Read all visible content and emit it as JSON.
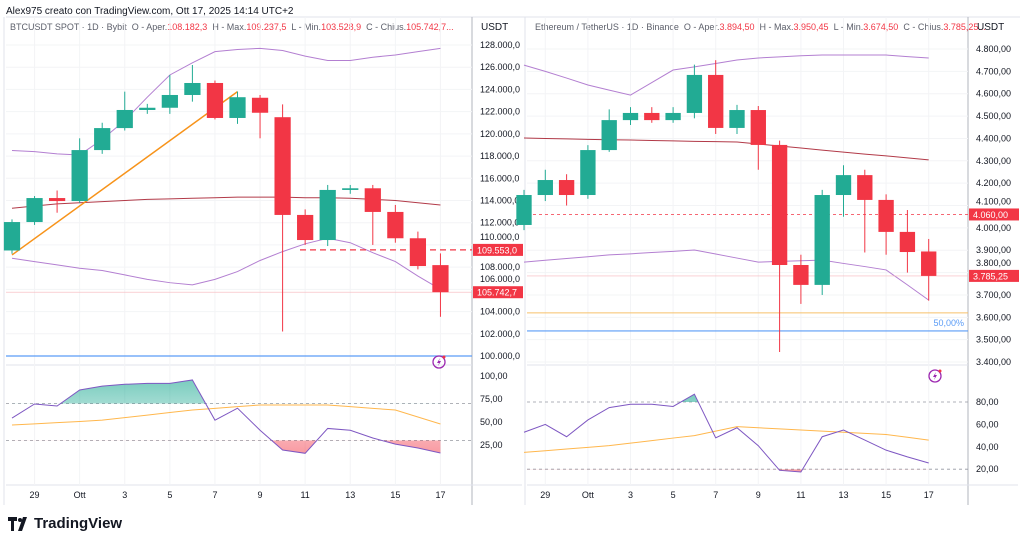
{
  "credit": "Alex975 creato con TradingView.com, Ott 17, 2025 14:14 UTC+2",
  "brand": "TradingView",
  "colors": {
    "up": "#22ab94",
    "down": "#f23645",
    "band": "#b37fd1",
    "basis": "#b23a48",
    "trend": "#f7931a",
    "level": "#2962ff",
    "rsi": "#7e57c2",
    "rsi_signal": "#ffb74d"
  },
  "dates": [
    "28",
    "29",
    "30",
    "Ott",
    "2",
    "3",
    "4",
    "5",
    "6",
    "7",
    "8",
    "9",
    "10",
    "11",
    "12",
    "13",
    "14",
    "15",
    "16",
    "17"
  ],
  "date_labels": [
    "29",
    "Ott",
    "3",
    "5",
    "7",
    "9",
    "11",
    "13",
    "15",
    "17"
  ],
  "panels": [
    {
      "symbol": "BTCUSDT SPOT · 1D · Bybit",
      "o_label": "O - Aper.",
      "o": "108.182,3",
      "h_label": "H - Max.",
      "h": "109.237,5",
      "l_label": "L - Min.",
      "l": "103.528,9",
      "c_label": "C - Chius.",
      "c": "105.742,7...",
      "currency": "USDT",
      "price_ticks": [
        "128.000,0",
        "126.000,0",
        "124.000,0",
        "122.000,0",
        "120.000,0",
        "118.000,0",
        "116.000,0",
        "114.000,0",
        "112.000,0",
        "110.000,0",
        "108.000,0",
        "106.000,0",
        "104.000,0",
        "102.000,0",
        "100.000,0"
      ],
      "rsi_ticks": [
        "100,00",
        "75,00",
        "50,00",
        "25,00"
      ],
      "dashed_level": {
        "value": 109553,
        "label": "109.553,0"
      },
      "last_price": {
        "value": 105742.7,
        "label": "105.742,7"
      },
      "horizontal_line": {
        "value": 100000
      },
      "trendline": {
        "from": [
          "28",
          109100
        ],
        "to": [
          "8",
          123800
        ]
      },
      "candles": [
        [
          109500,
          112300,
          109200,
          112060
        ],
        [
          112060,
          114400,
          111800,
          114220
        ],
        [
          114220,
          114900,
          112900,
          113950
        ],
        [
          113950,
          119600,
          113800,
          118540
        ],
        [
          118540,
          121000,
          118200,
          120520
        ],
        [
          120520,
          123800,
          120300,
          122150
        ],
        [
          122150,
          122700,
          121800,
          122350
        ],
        [
          122350,
          125300,
          121800,
          123500
        ],
        [
          123500,
          126200,
          122900,
          124580
        ],
        [
          124580,
          124800,
          121300,
          121430
        ],
        [
          121430,
          123800,
          120900,
          123300
        ],
        [
          123250,
          123500,
          119600,
          121900
        ],
        [
          121500,
          122650,
          102200,
          112700
        ],
        [
          112700,
          113200,
          110000,
          110440
        ],
        [
          110440,
          115400,
          109900,
          114950
        ],
        [
          114950,
          115400,
          114600,
          115100
        ],
        [
          115100,
          115400,
          110000,
          112970
        ],
        [
          112970,
          113600,
          110200,
          110600
        ],
        [
          110600,
          111200,
          107800,
          108100
        ],
        [
          108182.3,
          109237.5,
          103528.9,
          105742.7
        ]
      ],
      "bb_upper": [
        118500,
        118400,
        118200,
        118100,
        119500,
        121200,
        123300,
        125300,
        126400,
        127400,
        127600,
        127700,
        127500,
        127000,
        126600,
        126600,
        126900,
        127100,
        127400,
        127700
      ],
      "bb_basis": [
        113300,
        113500,
        113700,
        113800,
        113900,
        114000,
        114100,
        114150,
        114200,
        114250,
        114300,
        114300,
        114300,
        114250,
        114250,
        114200,
        114100,
        114000,
        113800,
        113600
      ],
      "bb_lower": [
        108800,
        108500,
        108200,
        107900,
        107700,
        107300,
        106900,
        106600,
        106400,
        106900,
        107600,
        108600,
        109400,
        110100,
        110600,
        110200,
        109300,
        108500,
        107200,
        106000
      ],
      "rsi": [
        54.3,
        69.6,
        67.4,
        84.8,
        89,
        91,
        92,
        92,
        95.7,
        52,
        65,
        41,
        19.6,
        16,
        43,
        41,
        32.6,
        26,
        21.7,
        16.3
      ],
      "rsi_signal": [
        46.7,
        48,
        49.3,
        50.6,
        52,
        54.8,
        57.5,
        60.3,
        63,
        64.8,
        66.7,
        68.5,
        68.5,
        68.5,
        68.5,
        66.7,
        64.8,
        63,
        55.4,
        47.8
      ],
      "rsi_levels": [
        70,
        30
      ]
    },
    {
      "symbol": "Ethereum / TetherUS · 1D · Binance",
      "o_label": "O - Aper.",
      "o": "3.894,50",
      "h_label": "H - Max.",
      "h": "3.950,45",
      "l_label": "L - Min.",
      "l": "3.674,50",
      "c_label": "C - Chius.",
      "c": "3.785,25...",
      "currency": "USDT",
      "price_ticks": [
        "4.800,00",
        "4.700,00",
        "4.600,00",
        "4.500,00",
        "4.400,00",
        "4.300,00",
        "4.200,00",
        "4.100,00",
        "4.000,00",
        "3.900,00",
        "3.800,00",
        "3.700,00",
        "3.600,00",
        "3.500,00",
        "3.400,00"
      ],
      "rsi_ticks": [
        "80,00",
        "60,00",
        "40,00",
        "20,00"
      ],
      "dashed_level": {
        "value": 4060,
        "label": "4.060,00"
      },
      "last_price": {
        "value": 3785.25,
        "label": "3.785,25"
      },
      "horizontal_line": {
        "value": 3539,
        "label": "50,00%"
      },
      "orange_line": {
        "value": 3620
      },
      "candles": [
        [
          4013,
          4170,
          3990,
          4147
        ],
        [
          4147,
          4260,
          4120,
          4214
        ],
        [
          4214,
          4240,
          4100,
          4147
        ],
        [
          4147,
          4370,
          4130,
          4348
        ],
        [
          4348,
          4530,
          4340,
          4482
        ],
        [
          4482,
          4540,
          4460,
          4514
        ],
        [
          4514,
          4540,
          4470,
          4482
        ],
        [
          4482,
          4540,
          4470,
          4514
        ],
        [
          4514,
          4730,
          4490,
          4684
        ],
        [
          4684,
          4750,
          4420,
          4447
        ],
        [
          4447,
          4550,
          4420,
          4527
        ],
        [
          4527,
          4545,
          4260,
          4371
        ],
        [
          4371,
          4390,
          3445,
          3834
        ],
        [
          3834,
          3880,
          3660,
          3745
        ],
        [
          3745,
          4170,
          3700,
          4147
        ],
        [
          4147,
          4280,
          4050,
          4236
        ],
        [
          4236,
          4260,
          3890,
          4125
        ],
        [
          4125,
          4150,
          3880,
          3982
        ],
        [
          3982,
          4080,
          3800,
          3892
        ],
        [
          3894.5,
          3950.45,
          3674.5,
          3785.25
        ]
      ],
      "bb_upper": [
        4728,
        4700,
        4670,
        4639,
        4616,
        4594,
        4650,
        4706,
        4720,
        4735,
        4751,
        4760,
        4765,
        4770,
        4773,
        4773,
        4773,
        4773,
        4766,
        4760
      ],
      "bb_basis": [
        4402,
        4400,
        4398,
        4396,
        4394,
        4393,
        4391,
        4389,
        4387,
        4386,
        4384,
        4375,
        4366,
        4357,
        4348,
        4339,
        4330,
        4322,
        4313,
        4304
      ],
      "bb_lower": [
        3847,
        3855,
        3863,
        3871,
        3879,
        3884,
        3890,
        3895,
        3901,
        3883,
        3865,
        3847,
        3850,
        3853,
        3856,
        3841,
        3827,
        3812,
        3745,
        3677
      ],
      "rsi": [
        53,
        60,
        49,
        64,
        75,
        78,
        78,
        76,
        87,
        48,
        57,
        41,
        19,
        17.5,
        49,
        55,
        46,
        37,
        31,
        25.5
      ],
      "rsi_signal": [
        35,
        36.5,
        38,
        39.5,
        41,
        43.3,
        45.5,
        47.8,
        50,
        54,
        58,
        57,
        56,
        55,
        54,
        53,
        52,
        51,
        48.5,
        46
      ],
      "rsi_levels": [
        80,
        20
      ]
    }
  ]
}
